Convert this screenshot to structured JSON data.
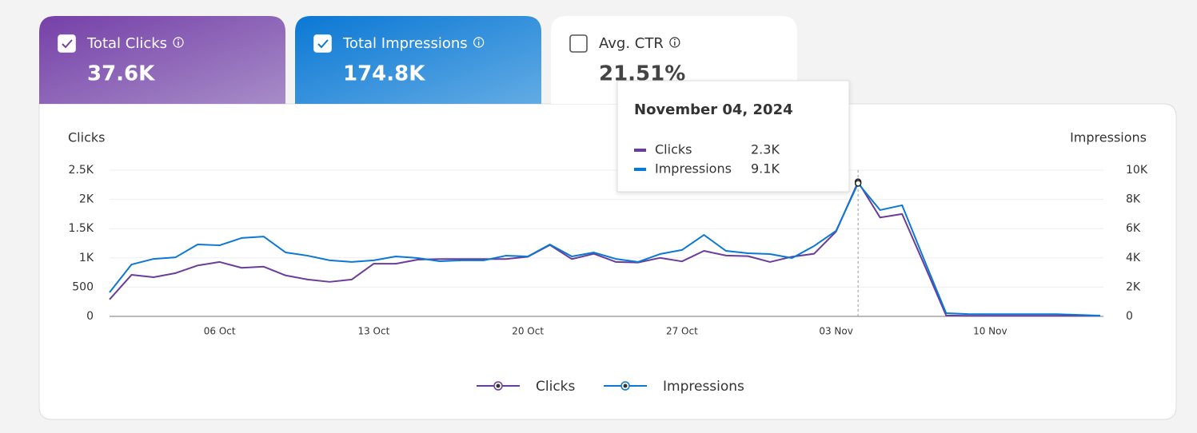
{
  "cards": [
    {
      "label": "Total Clicks",
      "value": "37.6K",
      "checked": true
    },
    {
      "label": "Total Impressions",
      "value": "174.8K",
      "checked": true
    },
    {
      "label": "Avg. CTR",
      "value": "21.51%",
      "checked": false
    }
  ],
  "chart_data": {
    "type": "line",
    "y_label": "Clicks",
    "y2_label": "Impressions",
    "categories": [
      "",
      "",
      "",
      "",
      "",
      "06 Oct",
      "",
      "",
      "",
      "",
      "",
      "",
      "13 Oct",
      "",
      "",
      "",
      "",
      "",
      "",
      "20 Oct",
      "",
      "",
      "",
      "",
      "",
      "",
      "27 Oct",
      "",
      "",
      "",
      "",
      "",
      "",
      "03 Nov",
      "",
      "",
      "",
      "",
      "",
      "",
      "10 Nov",
      "",
      "",
      "",
      "",
      ""
    ],
    "series": [
      {
        "name": "Clicks",
        "color": "#6a3d9a",
        "values": [
          290,
          710,
          670,
          740,
          870,
          930,
          830,
          850,
          700,
          630,
          590,
          630,
          900,
          900,
          970,
          980,
          980,
          980,
          980,
          1020,
          1220,
          980,
          1070,
          930,
          920,
          1000,
          940,
          1120,
          1040,
          1030,
          930,
          1020,
          1070,
          1450,
          2300,
          1690,
          1750,
          890,
          15,
          10,
          10,
          10,
          10,
          10,
          10,
          10
        ]
      },
      {
        "name": "Impressions",
        "color": "#0a78d4",
        "axis": "y2",
        "values": [
          1640,
          3550,
          3930,
          4040,
          4920,
          4860,
          5360,
          5460,
          4370,
          4150,
          3830,
          3720,
          3830,
          4100,
          3990,
          3770,
          3830,
          3830,
          4150,
          4100,
          4920,
          4100,
          4370,
          3930,
          3720,
          4260,
          4540,
          5570,
          4480,
          4320,
          4260,
          3990,
          4810,
          5850,
          9100,
          7270,
          7600,
          3880,
          220,
          160,
          150,
          150,
          150,
          150,
          100,
          50
        ]
      }
    ],
    "ylim": [
      0,
      2500
    ],
    "yticks": [
      0,
      500,
      {
        "value": 1000,
        "label": "1K"
      },
      {
        "value": 1500,
        "label": "1.5K"
      },
      {
        "value": 2000,
        "label": "2K"
      },
      {
        "value": 2500,
        "label": "2.5K"
      }
    ],
    "y2lim": [
      0,
      10000
    ],
    "y2ticks": [
      0,
      {
        "value": 2000,
        "label": "2K"
      },
      {
        "value": 4000,
        "label": "4K"
      },
      {
        "value": 6000,
        "label": "6K"
      },
      {
        "value": 8000,
        "label": "8K"
      },
      {
        "value": 10000,
        "label": "10K"
      }
    ],
    "grid": true,
    "tooltip": {
      "title": "November 04, 2024",
      "index": 34,
      "value_labels": [
        "2.3K",
        "9.1K"
      ]
    }
  }
}
